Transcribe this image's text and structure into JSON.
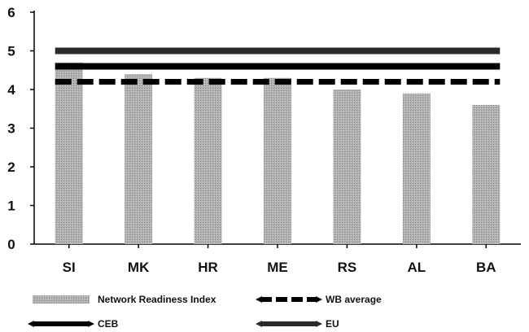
{
  "chart_data": {
    "type": "bar",
    "categories": [
      "SI",
      "MK",
      "HR",
      "ME",
      "RS",
      "AL",
      "BA"
    ],
    "ylim": [
      0,
      6
    ],
    "yticks": [
      0,
      1,
      2,
      3,
      4,
      5,
      6
    ],
    "grid": false,
    "legend_position": "bottom",
    "series": [
      {
        "name": "Network Readiness Index",
        "kind": "bar",
        "color": "#a8a8a8",
        "values": [
          4.7,
          4.4,
          4.3,
          4.3,
          4.0,
          3.9,
          3.6
        ]
      },
      {
        "name": "WB average",
        "kind": "reference-line",
        "style": "dashed",
        "color": "#000000",
        "value": 4.2
      },
      {
        "name": "CEB",
        "kind": "reference-line",
        "style": "solid",
        "color": "#000000",
        "value": 4.6
      },
      {
        "name": "EU",
        "kind": "reference-line",
        "style": "solid",
        "color": "#2a2a2a",
        "value": 5.0
      }
    ]
  }
}
